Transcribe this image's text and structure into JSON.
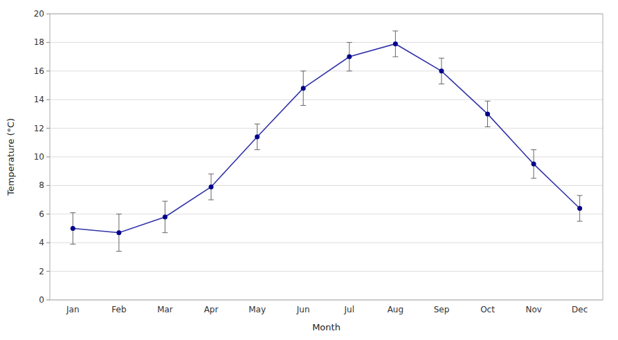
{
  "chart_data": {
    "type": "line",
    "categories": [
      "Jan",
      "Feb",
      "Mar",
      "Apr",
      "May",
      "Jun",
      "Jul",
      "Aug",
      "Sep",
      "Oct",
      "Nov",
      "Dec"
    ],
    "values": [
      5.0,
      4.7,
      5.8,
      7.9,
      11.4,
      14.8,
      17.0,
      17.9,
      16.0,
      13.0,
      9.5,
      6.4
    ],
    "errors": [
      1.1,
      1.3,
      1.1,
      0.9,
      0.9,
      1.2,
      1.0,
      0.9,
      0.9,
      0.9,
      1.0,
      0.9
    ],
    "color": "#3333aa",
    "marker": "circle",
    "xlabel": "Month",
    "ylabel": "Temperature (°C)",
    "ylim": [
      0,
      20
    ],
    "yticks": [
      0,
      2,
      4,
      6,
      8,
      10,
      12,
      14,
      16,
      18,
      20
    ],
    "grid": true
  }
}
